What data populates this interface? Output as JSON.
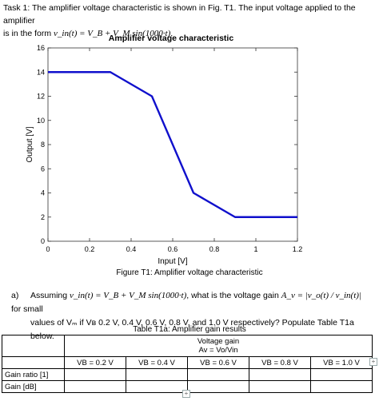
{
  "intro": {
    "line1": "Task 1: The amplifier voltage characteristic is shown in Fig. T1. The input voltage applied to the amplifier",
    "line2_prefix": "is in the form",
    "equation": "v_in(t) = V_B + V_M sin(1000·t)",
    "line2_suffix": "."
  },
  "chart_data": {
    "type": "line",
    "title": "Amplifier voltage characteristic",
    "xlabel": "Input [V]",
    "ylabel": "Output [V]",
    "xlim": [
      0,
      1.2
    ],
    "ylim": [
      0,
      16
    ],
    "xticks": [
      0,
      0.2,
      0.4,
      0.6,
      0.8,
      1,
      1.2
    ],
    "xtick_labels": [
      "0",
      "0.2",
      "0.4",
      "0.6",
      "0.8",
      "1",
      "1.2"
    ],
    "yticks": [
      0,
      2,
      4,
      6,
      8,
      10,
      12,
      14,
      16
    ],
    "ytick_labels": [
      "0",
      "2",
      "4",
      "6",
      "8",
      "10",
      "12",
      "14",
      "16"
    ],
    "grid": false,
    "line_color": "#1010cc",
    "series": [
      {
        "x": [
          0,
          0.3,
          0.5,
          0.7,
          0.9,
          1.2
        ],
        "y": [
          14,
          14,
          12,
          4,
          2,
          2
        ]
      }
    ]
  },
  "figure_caption": "Figure T1: Amplifier voltage characteristic",
  "question": {
    "label": "a)",
    "assuming": "Assuming",
    "equation": "v_in(t) = V_B + V_M sin(1000·t)",
    "mid": ", what is the voltage gain",
    "gain_eq": "A_v = |v_o(t) / v_in(t)|",
    "end": "for small",
    "line2": "values of Vₘ if Vʙ 0.2 V, 0.4 V, 0.6 V, 0.8 V, and 1.0 V respectively? Populate Table T1a below."
  },
  "table": {
    "caption": "Table T1a: Amplifier gain results",
    "header_line1": "Voltage gain",
    "header_line2": "Av = Vo/Vin",
    "columns": [
      "VB = 0.2 V",
      "VB = 0.4 V",
      "VB = 0.6 V",
      "VB = 0.8 V",
      "VB = 1.0 V"
    ],
    "rows": [
      "Gain ratio [1]",
      "Gain [dB]"
    ]
  },
  "controls": {
    "add_column": "+",
    "add_row": "+"
  }
}
